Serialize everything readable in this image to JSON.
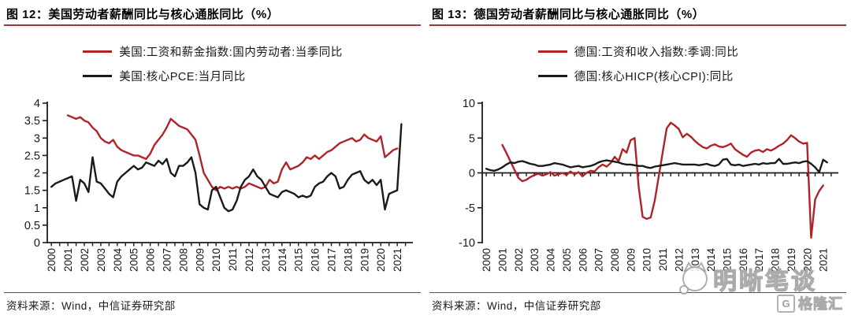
{
  "colors": {
    "wage_line": "#b02328",
    "inflation_line": "#1a1a1a",
    "title_underline": "#9a3a3a"
  },
  "source_note": "资料来源：Wind，中信证券研究部",
  "watermark": {
    "brand": "明晰笔谈",
    "badge_letter": "G",
    "badge_text": "格隆汇",
    "cat-logo-icon": "cat-face-with-speech-bubble"
  },
  "chart_data": [
    {
      "type": "line",
      "title_prefix": "图 12：",
      "title": "美国劳动者薪酬同比与核心通胀同比（%）",
      "xlabel": "",
      "ylabel": "",
      "grid": false,
      "legend_position": "top-center",
      "xlim": [
        1999.75,
        2021.95
      ],
      "ylim": [
        0,
        4
      ],
      "y_ticks": [
        0,
        0.5,
        1,
        1.5,
        2,
        2.5,
        3,
        3.5,
        4
      ],
      "x_tick_years": [
        "2000",
        "2001",
        "2002",
        "2003",
        "2004",
        "2005",
        "2006",
        "2007",
        "2008",
        "2009",
        "2010",
        "2011",
        "2012",
        "2013",
        "2014",
        "2015",
        "2016",
        "2017",
        "2018",
        "2019",
        "2020",
        "2021"
      ],
      "series": [
        {
          "name": "美国:工资和薪金指数:国内劳动者:当季同比",
          "color": "#b02328",
          "x_start": 2001.0,
          "x_step": 0.25,
          "values": [
            3.65,
            3.6,
            3.55,
            3.6,
            3.5,
            3.45,
            3.3,
            3.2,
            3.0,
            2.9,
            2.85,
            2.95,
            2.75,
            2.65,
            2.6,
            2.55,
            2.5,
            2.5,
            2.45,
            2.4,
            2.55,
            2.8,
            2.95,
            3.1,
            3.3,
            3.55,
            3.45,
            3.35,
            3.3,
            3.25,
            3.1,
            2.95,
            2.5,
            2.0,
            1.8,
            1.6,
            1.5,
            1.6,
            1.55,
            1.6,
            1.55,
            1.6,
            1.55,
            1.6,
            1.7,
            1.65,
            1.6,
            1.55,
            1.6,
            1.8,
            1.7,
            1.75,
            2.1,
            2.3,
            2.1,
            2.15,
            2.2,
            2.3,
            2.45,
            2.4,
            2.5,
            2.4,
            2.5,
            2.6,
            2.65,
            2.75,
            2.85,
            2.9,
            2.95,
            3.0,
            2.9,
            2.95,
            3.1,
            3.0,
            2.95,
            2.9,
            3.05,
            2.45,
            2.55,
            2.65,
            2.7
          ]
        },
        {
          "name": "美国:核心PCE:当月同比",
          "color": "#1a1a1a",
          "x_start": 2000.0,
          "x_step": 0.25,
          "values": [
            1.6,
            1.7,
            1.75,
            1.8,
            1.85,
            1.9,
            1.2,
            1.8,
            1.7,
            1.45,
            2.45,
            1.75,
            1.7,
            1.55,
            1.4,
            1.3,
            1.75,
            1.9,
            2.0,
            2.1,
            2.2,
            2.1,
            2.15,
            2.3,
            2.25,
            2.2,
            2.35,
            2.25,
            2.4,
            2.0,
            1.9,
            2.2,
            2.2,
            2.3,
            2.45,
            2.0,
            1.1,
            1.0,
            0.95,
            1.5,
            1.6,
            1.3,
            1.0,
            0.9,
            0.95,
            1.2,
            1.6,
            1.8,
            1.9,
            2.1,
            1.9,
            1.8,
            1.6,
            1.4,
            1.35,
            1.3,
            1.45,
            1.5,
            1.45,
            1.4,
            1.3,
            1.35,
            1.3,
            1.35,
            1.6,
            1.7,
            1.75,
            1.9,
            2.0,
            1.9,
            1.55,
            1.6,
            1.8,
            1.95,
            2.0,
            2.05,
            1.8,
            1.7,
            1.8,
            1.65,
            1.8,
            0.95,
            1.4,
            1.45,
            1.5,
            3.4
          ]
        }
      ]
    },
    {
      "type": "line",
      "title_prefix": "图 13：",
      "title": "德国劳动者薪酬同比与核心通胀同比（%）",
      "xlabel": "",
      "ylabel": "",
      "grid": false,
      "legend_position": "top-center",
      "xlim": [
        1999.75,
        2021.95
      ],
      "ylim": [
        -10,
        10
      ],
      "y_ticks": [
        -10,
        -5,
        0,
        5,
        10
      ],
      "x_tick_years": [
        "2000",
        "2001",
        "2002",
        "2003",
        "2004",
        "2005",
        "2006",
        "2007",
        "2008",
        "2009",
        "2010",
        "2011",
        "2012",
        "2013",
        "2014",
        "2015",
        "2016",
        "2017",
        "2018",
        "2019",
        "2020",
        "2021"
      ],
      "series": [
        {
          "name": "德国:工资和收入指数:季调:同比",
          "color": "#b02328",
          "x_start": 2001.0,
          "x_step": 0.25,
          "values": [
            4.0,
            2.9,
            1.7,
            0.5,
            -0.7,
            -1.2,
            -1.0,
            -0.6,
            -0.3,
            -0.1,
            -0.4,
            -0.2,
            0.1,
            -0.4,
            -0.2,
            0.0,
            -0.3,
            0.2,
            -0.2,
            0.1,
            -0.5,
            0.0,
            0.3,
            0.2,
            0.8,
            1.2,
            0.9,
            1.4,
            2.3,
            1.7,
            3.4,
            2.9,
            4.7,
            5.0,
            -2.0,
            -6.3,
            -6.6,
            -6.4,
            -4.0,
            -0.5,
            3.0,
            6.4,
            7.2,
            6.8,
            6.3,
            5.1,
            5.6,
            5.2,
            4.6,
            4.1,
            3.7,
            3.5,
            3.9,
            4.1,
            3.8,
            3.7,
            3.9,
            4.2,
            3.4,
            3.0,
            2.6,
            2.3,
            2.9,
            3.2,
            3.3,
            3.0,
            3.4,
            3.2,
            3.5,
            3.9,
            4.2,
            4.7,
            5.4,
            5.0,
            4.5,
            4.2,
            4.3,
            -9.3,
            -3.8,
            -2.6,
            -1.8
          ]
        },
        {
          "name": "德国:核心HICP(核心CPI):同比",
          "color": "#1a1a1a",
          "x_start": 2000.0,
          "x_step": 0.25,
          "values": [
            0.6,
            0.4,
            0.3,
            0.5,
            0.8,
            1.2,
            1.5,
            1.4,
            1.6,
            1.7,
            1.5,
            1.3,
            1.2,
            1.0,
            1.0,
            1.1,
            1.2,
            1.4,
            1.3,
            1.2,
            1.0,
            0.8,
            0.9,
            1.0,
            0.8,
            0.9,
            1.0,
            1.2,
            1.5,
            1.7,
            1.8,
            1.7,
            1.6,
            1.5,
            1.3,
            1.2,
            1.2,
            1.1,
            1.0,
            1.0,
            0.8,
            0.7,
            0.9,
            1.0,
            1.1,
            1.2,
            1.3,
            1.4,
            1.3,
            1.2,
            1.2,
            1.2,
            1.2,
            1.1,
            1.2,
            1.3,
            1.1,
            1.0,
            1.2,
            1.9,
            2.0,
            1.2,
            1.1,
            1.2,
            1.0,
            1.1,
            1.2,
            1.3,
            1.2,
            1.4,
            1.3,
            1.4,
            1.4,
            2.0,
            1.3,
            1.3,
            1.4,
            1.5,
            1.4,
            1.6,
            1.7,
            1.3,
            0.8,
            0.1,
            1.9,
            1.5
          ]
        }
      ]
    }
  ]
}
